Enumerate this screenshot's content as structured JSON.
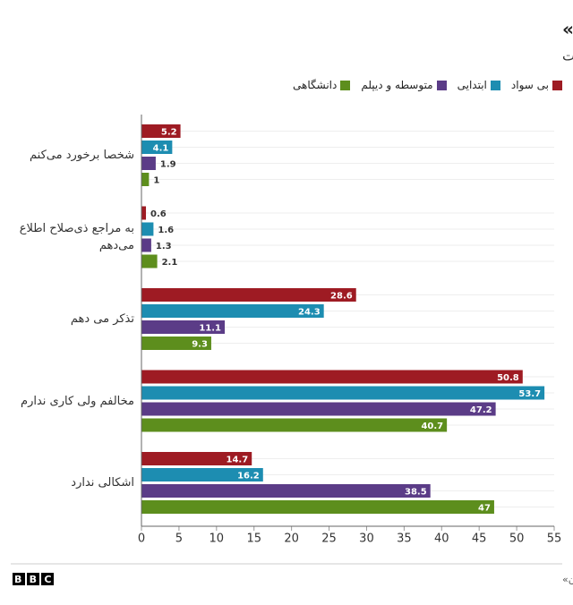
{
  "chart_data": {
    "type": "bar",
    "orientation": "horizontal",
    "title": "نحوه مواجهه با «بی‌حجابی خانم‌ها»",
    "subtitle": "به تفکیک تحصیلات",
    "categories": [
      "شخصا برخورد می‌کنم",
      "به مراجع ذی‌صلاح اطلاع می‌دهم",
      "تذکر می دهم",
      "مخالفم ولی کاری ندارم",
      "اشکالی ندارد"
    ],
    "series": [
      {
        "name": "بی سواد",
        "color": "#9e1b23",
        "values": [
          5.2,
          0.6,
          28.6,
          50.8,
          14.7
        ]
      },
      {
        "name": "ابتدایی",
        "color": "#1d8db1",
        "values": [
          4.1,
          1.6,
          24.3,
          53.7,
          16.2
        ]
      },
      {
        "name": "متوسطه و دیپلم",
        "color": "#5b3c87",
        "values": [
          1.9,
          1.3,
          11.1,
          47.2,
          38.5
        ]
      },
      {
        "name": "دانشگاهی",
        "color": "#5d8e1d",
        "values": [
          1,
          2.1,
          9.3,
          40.7,
          47
        ]
      }
    ],
    "xlim": [
      0,
      55
    ],
    "xticks": [
      0,
      5,
      10,
      15,
      20,
      25,
      30,
      35,
      40,
      45,
      50,
      55
    ],
    "source": "منبع: پیمایش «ارزش‌ها و نگرش‌های ایرانیان»",
    "logo": "BBC"
  }
}
